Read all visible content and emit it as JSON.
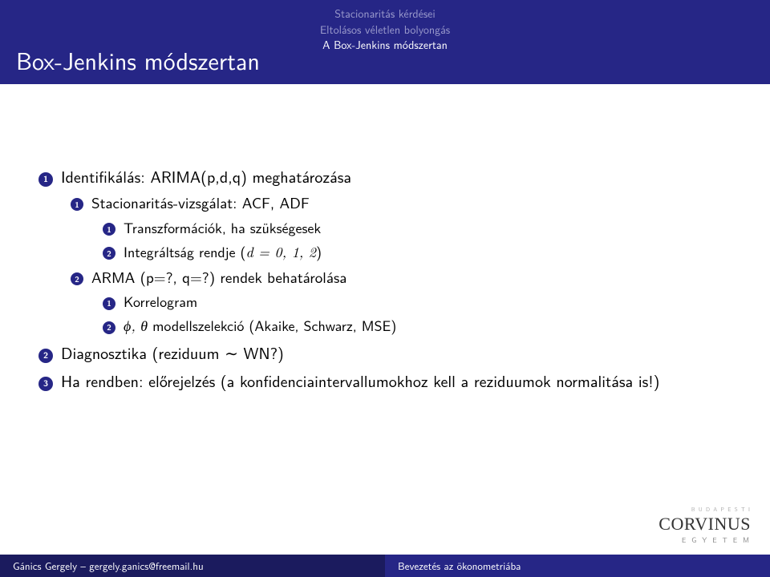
{
  "header": {
    "breadcrumb": {
      "line1": "Stacionaritás kérdései",
      "line2": "Eltolásos véletlen bolyongás",
      "line3": "A Box-Jenkins módszertan"
    },
    "title": "Box-Jenkins módszertan"
  },
  "bullets": {
    "l1_1": "Identifikálás: ARIMA(p,d,q) meghatározása",
    "l2_1": "Stacionaritás-vizsgálat: ACF, ADF",
    "l3_1": "Transzformációk, ha szükségesek",
    "l3_2_pre": "Integráltság rendje (",
    "l3_2_math": "d = 0, 1, 2",
    "l3_2_post": ")",
    "l2_2": "ARMA (p=?, q=?) rendek behatárolása",
    "l4_1": "Korrelogram",
    "l4_2_math": "ϕ, θ",
    "l4_2_rest": " modellszelekció (Akaike, Schwarz, MSE)",
    "l1_2": "Diagnosztika (reziduum ∼ WN?)",
    "l1_3": "Ha rendben: előrejelzés (a konfidenciaintervallumokhoz kell a reziduumok normalitása is!)"
  },
  "numbers": {
    "n1": "1",
    "n2": "2",
    "n3": "3"
  },
  "footer": {
    "left": "Gánics Gergely – gergely.ganics@freemail.hu",
    "right": "Bevezetés az ökonometriába"
  },
  "logo": {
    "mini": "B U D A P E S T I",
    "brand": "CORVINUS",
    "sub": "E G Y E T E M"
  },
  "colors": {
    "primary": "#262686",
    "primary_dark": "#1b1b5e",
    "dim": "#9a9acc",
    "bg": "#ffffff",
    "fg": "#000000"
  }
}
